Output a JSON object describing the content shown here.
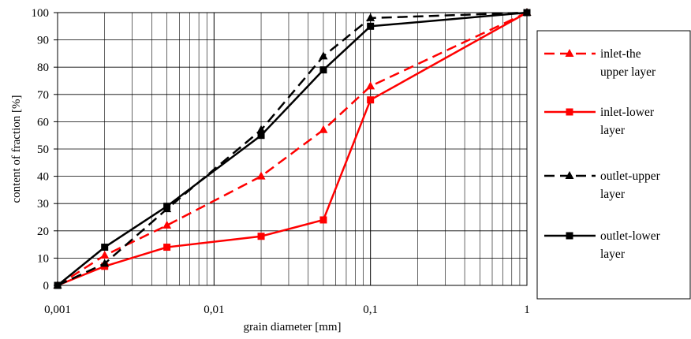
{
  "chart_data": {
    "type": "line",
    "xscale": "log",
    "xlabel": "grain diameter [mm]",
    "ylabel": "content of fraction [%]",
    "xlim": [
      0.001,
      1
    ],
    "ylim": [
      0,
      100
    ],
    "grid": true,
    "legend_position": "right",
    "x_tick_labels": [
      "0,001",
      "0,01",
      "0,1",
      "1"
    ],
    "y_tick_labels": [
      "0",
      "10",
      "20",
      "30",
      "40",
      "50",
      "60",
      "70",
      "80",
      "90",
      "100"
    ],
    "series": [
      {
        "name": "inlet-the upper layer",
        "legend_lines": [
          "inlet-the",
          "upper layer"
        ],
        "color": "#ff0000",
        "dash": "dashed",
        "marker": "triangle",
        "x": [
          0.001,
          0.002,
          0.005,
          0.02,
          0.05,
          0.1,
          1
        ],
        "y": [
          0,
          11,
          22,
          40,
          57,
          73,
          100
        ]
      },
      {
        "name": "inlet-lower layer",
        "legend_lines": [
          "inlet-lower",
          "layer"
        ],
        "color": "#ff0000",
        "dash": "solid",
        "marker": "square",
        "x": [
          0.001,
          0.002,
          0.005,
          0.02,
          0.05,
          0.1,
          1
        ],
        "y": [
          0,
          7,
          14,
          18,
          24,
          68,
          100
        ]
      },
      {
        "name": "outlet-upper layer",
        "legend_lines": [
          "outlet-upper",
          "layer"
        ],
        "color": "#000000",
        "dash": "dashed",
        "marker": "triangle",
        "x": [
          0.001,
          0.002,
          0.005,
          0.02,
          0.05,
          0.1,
          1
        ],
        "y": [
          0,
          8,
          28,
          57,
          84,
          98,
          100
        ]
      },
      {
        "name": "outlet-lower layer",
        "legend_lines": [
          "outlet-lower",
          "layer"
        ],
        "color": "#000000",
        "dash": "solid",
        "marker": "square",
        "x": [
          0.001,
          0.002,
          0.005,
          0.02,
          0.05,
          0.1,
          1
        ],
        "y": [
          0,
          14,
          29,
          55,
          79,
          95,
          100
        ]
      }
    ]
  }
}
